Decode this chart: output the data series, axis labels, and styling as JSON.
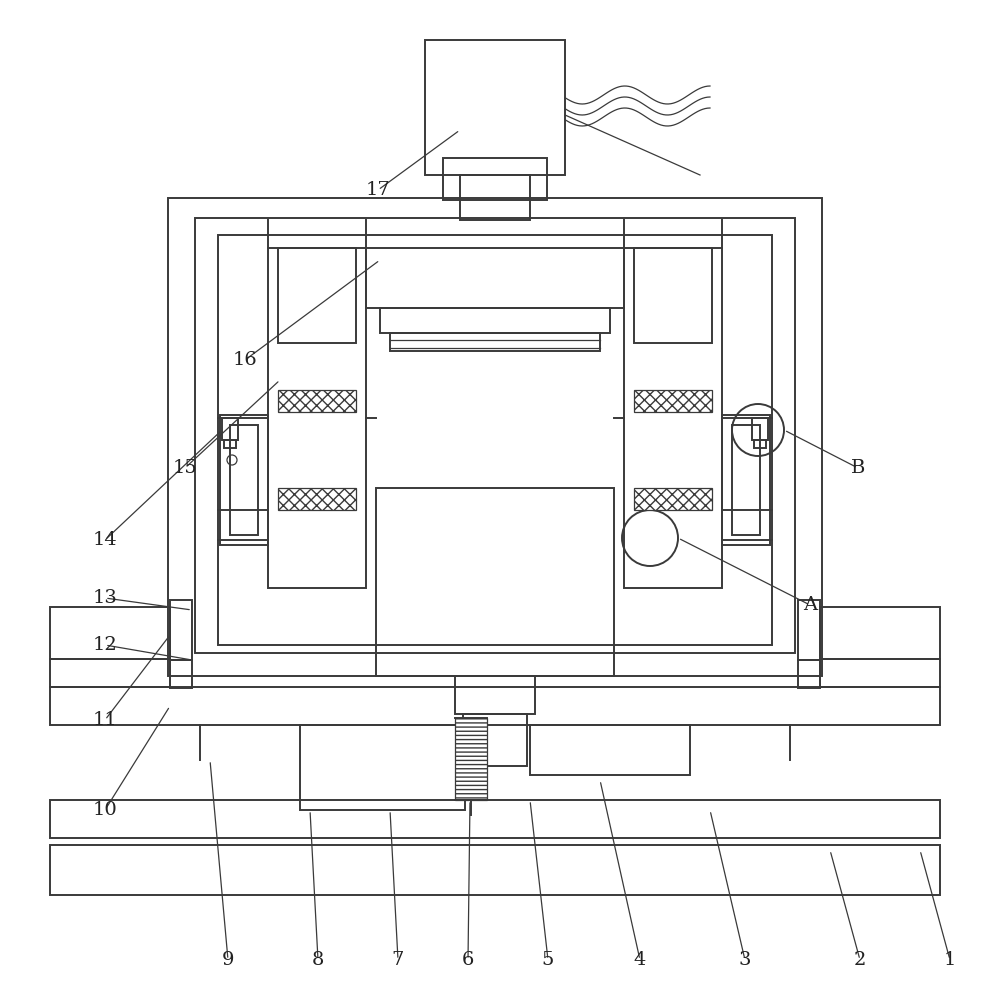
{
  "bg_color": "#ffffff",
  "lc": "#3a3a3a",
  "lw": 1.4,
  "lw_thin": 0.9
}
